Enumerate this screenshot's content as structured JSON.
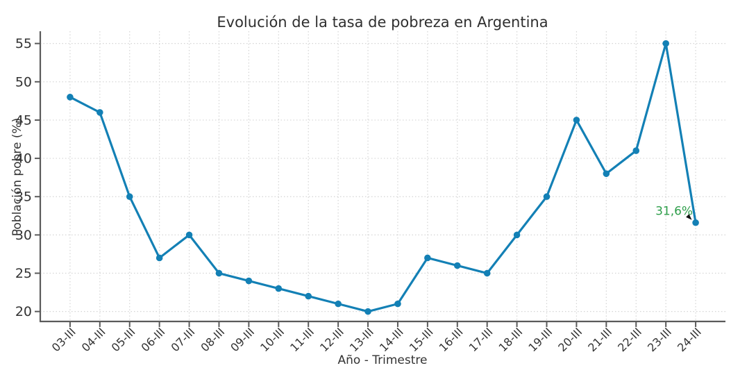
{
  "chart_data": {
    "type": "line",
    "title": "Evolución de la tasa de pobreza en Argentina",
    "xlabel": "Año - Trimestre",
    "ylabel": "Población pobre (%)",
    "categories": [
      "03-III",
      "04-III",
      "05-III",
      "06-III",
      "07-III",
      "08-III",
      "09-III",
      "10-III",
      "11-III",
      "12-III",
      "13-III",
      "14-III",
      "15-III",
      "16-III",
      "17-III",
      "18-III",
      "19-III",
      "20-III",
      "21-III",
      "22-III",
      "23-III",
      "24-III"
    ],
    "values": [
      48,
      46,
      35,
      27,
      30,
      25,
      24,
      23,
      22,
      21,
      20,
      21,
      27,
      26,
      25,
      30,
      35,
      45,
      38,
      41,
      55,
      31.6
    ],
    "yticks": [
      20,
      25,
      30,
      35,
      40,
      45,
      50,
      55
    ],
    "ylim": [
      18.7,
      56.6
    ],
    "grid": true,
    "grid_style": "dotted",
    "legend_position": "none",
    "colors": {
      "line": "#1380b5",
      "marker": "#1380b5",
      "grid": "#d4d4d4",
      "spine": "#5a5a5a",
      "tick_label": "#333333",
      "title": "#2f2f2f",
      "annotation": "#2e9e4a",
      "arrow": "#111111",
      "background": "#ffffff"
    },
    "annotation": {
      "text": "31,6%",
      "value": 31.6,
      "category": "24-III",
      "color": "#2e9e4a"
    }
  }
}
